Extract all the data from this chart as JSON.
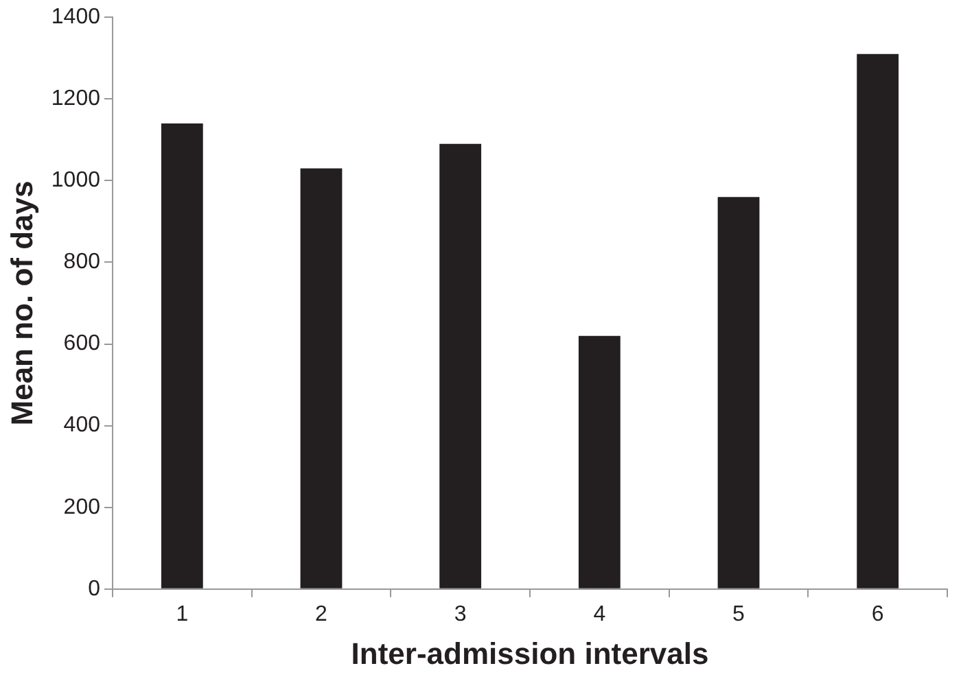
{
  "chart_data": {
    "type": "bar",
    "xlabel": "Inter-admission intervals",
    "ylabel": "Mean no. of days",
    "categories": [
      "1",
      "2",
      "3",
      "4",
      "5",
      "6"
    ],
    "values": [
      1140,
      1030,
      1090,
      620,
      960,
      1310
    ],
    "color": "#231f20",
    "ylim": [
      0,
      1400
    ],
    "yticks": [
      0,
      200,
      400,
      600,
      800,
      1000,
      1200,
      1400
    ],
    "grid": false,
    "legend": false
  }
}
